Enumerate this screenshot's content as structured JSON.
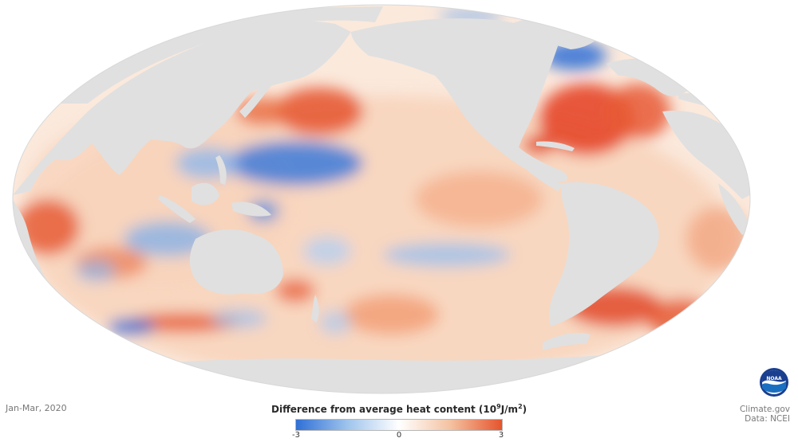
{
  "map": {
    "projection": "Mollweide (Pacific-centered)",
    "land_color": "#e0e0e0",
    "ocean_background": "#ffffff",
    "scale_colors": [
      "#2f6fd6",
      "#9fc4ec",
      "#ffffff",
      "#f4c2a1",
      "#e5542d"
    ]
  },
  "period": "Jan-Mar, 2020",
  "legend": {
    "title_prefix": "Difference from average heat content (10",
    "title_exponent": "9",
    "title_units": "J/m",
    "title_units_exponent": "2",
    "title_suffix": ")",
    "min": "-3",
    "mid": "0",
    "max": "3"
  },
  "logo": {
    "icon": "noaa-logo-icon",
    "text": "NOAA"
  },
  "credits": {
    "source_site": "Climate.gov",
    "data_source": "Data: NCEI"
  }
}
